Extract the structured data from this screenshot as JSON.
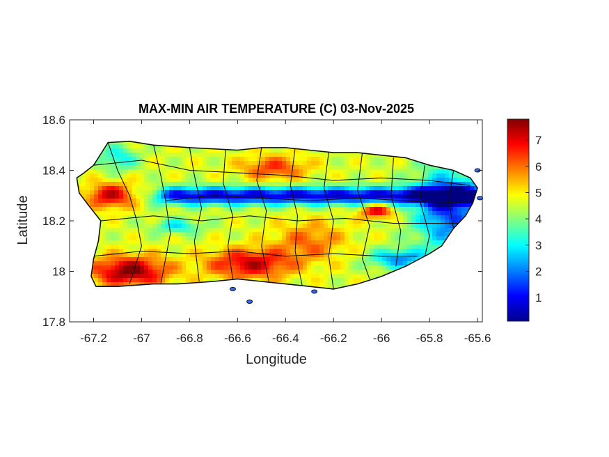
{
  "chart_data": {
    "type": "heatmap",
    "title": "MAX-MIN AIR TEMPERATURE (C) 03-Nov-2025",
    "xlabel": "Longitude",
    "ylabel": "Latitude",
    "xlim": [
      -67.3,
      -65.58
    ],
    "ylim": [
      17.8,
      18.6
    ],
    "xticks": [
      -67.2,
      -67,
      -66.8,
      -66.6,
      -66.4,
      -66.2,
      -66,
      -65.8,
      -65.6
    ],
    "xtick_labels": [
      "-67.2",
      "-67",
      "-66.8",
      "-66.6",
      "-66.4",
      "-66.2",
      "-66",
      "-65.8",
      "-65.6"
    ],
    "yticks": [
      17.8,
      18,
      18.2,
      18.4,
      18.6
    ],
    "ytick_labels": [
      "17.8",
      "18",
      "18.2",
      "18.4",
      "18.6"
    ],
    "colorbar": {
      "colormap": "jet",
      "range": [
        0.1,
        7.8
      ],
      "ticks": [
        1,
        2,
        3,
        4,
        5,
        6,
        7
      ],
      "tick_labels": [
        "1",
        "2",
        "3",
        "4",
        "5",
        "6",
        "7"
      ]
    },
    "grid": false,
    "features": [
      {
        "name": "central-cold-band",
        "lat": 18.3,
        "from_lon": -66.95,
        "to_lon": -65.6,
        "value": 1.0
      },
      {
        "name": "southwest-hot-zone",
        "lon": -67.05,
        "lat": 18.0,
        "value": 7.5
      },
      {
        "name": "south-central-hot-zone",
        "lon": -66.55,
        "lat": 18.02,
        "value": 7.0
      },
      {
        "name": "northwest-hot-zone",
        "lon": -67.15,
        "lat": 18.3,
        "value": 7.0
      },
      {
        "name": "north-central-warm-zone",
        "lon": -66.45,
        "lat": 18.41,
        "value": 6.0
      },
      {
        "name": "east-central-hot-spot",
        "lon": -66.0,
        "lat": 18.24,
        "value": 7.0
      },
      {
        "name": "eastern-cool-zone",
        "lon": -65.75,
        "lat": 18.25,
        "value": 1.5
      },
      {
        "name": "southeast-cool-zone",
        "lon": -65.95,
        "lat": 18.05,
        "value": 1.8
      }
    ]
  }
}
